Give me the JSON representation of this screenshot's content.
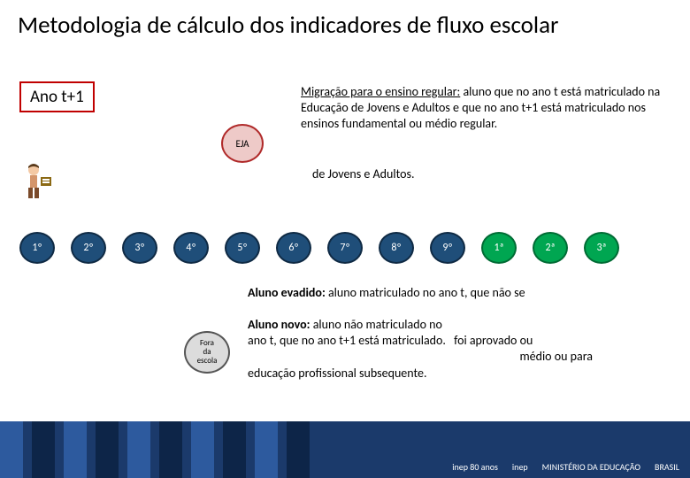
{
  "title": "Metodologia de cálculo dos indicadores de fluxo escolar",
  "year_label": "Ano t+1",
  "eja_label": "EJA",
  "desc1": {
    "underline": "Migração para o ensino regular:",
    "rest": " aluno que no ano t está matriculado na Educação de Jovens e Adultos e que no ano t+1 está matriculado nos ensinos fundamental ou médio regular."
  },
  "desc1_extra": "de Jovens e Adultos.",
  "grades": [
    {
      "label": "1º",
      "bg": "#1f4e79",
      "border": "#0f2a44"
    },
    {
      "label": "2º",
      "bg": "#1f4e79",
      "border": "#0f2a44"
    },
    {
      "label": "3º",
      "bg": "#1f4e79",
      "border": "#0f2a44"
    },
    {
      "label": "4º",
      "bg": "#1f4e79",
      "border": "#0f2a44"
    },
    {
      "label": "5º",
      "bg": "#1f4e79",
      "border": "#0f2a44"
    },
    {
      "label": "6º",
      "bg": "#1f4e79",
      "border": "#0f2a44"
    },
    {
      "label": "7º",
      "bg": "#1f4e79",
      "border": "#0f2a44"
    },
    {
      "label": "8º",
      "bg": "#1f4e79",
      "border": "#0f2a44"
    },
    {
      "label": "9º",
      "bg": "#1f4e79",
      "border": "#0f2a44"
    },
    {
      "label": "1ª",
      "bg": "#00a651",
      "border": "#006b34"
    },
    {
      "label": "2ª",
      "bg": "#00a651",
      "border": "#006b34"
    },
    {
      "label": "3ª",
      "bg": "#00a651",
      "border": "#006b34"
    }
  ],
  "desc2_bold": "Aluno evadido:",
  "desc2_rest": "  aluno matriculado no ano t, que não se",
  "desc3_bold": "Aluno novo:",
  "desc3_rest": " aluno não matriculado no",
  "desc3_line2": "ano t, que no ano t+1 está matriculado.",
  "desc3_frag1": " foi aprovado ou",
  "desc3_frag2": "médio ou para",
  "desc3_line3": "educação profissional subsequente.",
  "fora_label": "Fora da escola",
  "footer": {
    "bg": "#1b3a6b",
    "bars": [
      "#2d5a9e",
      "#0d2548",
      "#2d5a9e",
      "#0d2548",
      "#2d5a9e",
      "#0d2548",
      "#2d5a9e",
      "#0d2548",
      "#2d5a9e",
      "#0d2548"
    ],
    "logos": [
      "inep 80 anos",
      "inep",
      "MINISTÉRIO DA EDUCAÇÃO",
      "BRASIL"
    ]
  }
}
